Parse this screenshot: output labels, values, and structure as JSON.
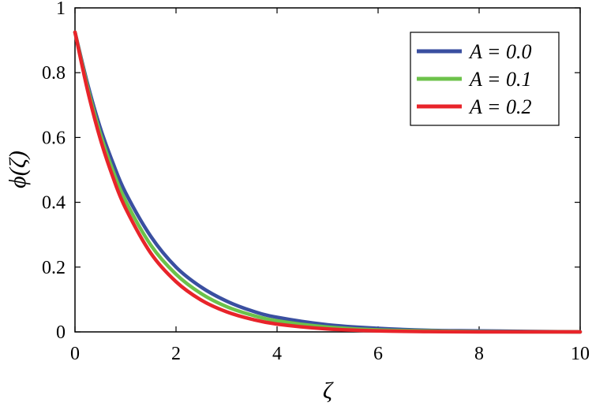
{
  "chart_data": {
    "type": "line",
    "xlabel": "ζ",
    "ylabel": "ϕ(ζ)",
    "xlim": [
      0,
      10
    ],
    "ylim": [
      0,
      1
    ],
    "xticks": [
      "0",
      "2",
      "4",
      "6",
      "8",
      "10"
    ],
    "yticks": [
      "0",
      "0.2",
      "0.4",
      "0.6",
      "0.8",
      "1"
    ],
    "grid": false,
    "legend_position": "top-right",
    "series": [
      {
        "name": "A = 0.0",
        "color": "#3a4fa0",
        "x": [
          0,
          0.25,
          0.5,
          0.75,
          1,
          1.5,
          2,
          2.5,
          3,
          3.5,
          4,
          5,
          6,
          7,
          8,
          10
        ],
        "y": [
          0.925,
          0.765,
          0.63,
          0.522,
          0.43,
          0.295,
          0.2,
          0.138,
          0.095,
          0.065,
          0.045,
          0.022,
          0.011,
          0.005,
          0.003,
          0.0
        ]
      },
      {
        "name": "A = 0.1",
        "color": "#6cc24a",
        "x": [
          0,
          0.25,
          0.5,
          0.75,
          1,
          1.5,
          2,
          2.5,
          3,
          3.5,
          4,
          5,
          6,
          7,
          8,
          10
        ],
        "y": [
          0.925,
          0.755,
          0.612,
          0.498,
          0.405,
          0.268,
          0.178,
          0.118,
          0.078,
          0.052,
          0.034,
          0.015,
          0.006,
          0.003,
          0.001,
          0.0
        ]
      },
      {
        "name": "A = 0.2",
        "color": "#e8242a",
        "x": [
          0,
          0.25,
          0.5,
          0.75,
          1,
          1.5,
          2,
          2.5,
          3,
          3.5,
          4,
          5,
          6,
          7,
          8,
          10
        ],
        "y": [
          0.925,
          0.745,
          0.596,
          0.478,
          0.382,
          0.243,
          0.155,
          0.098,
          0.062,
          0.039,
          0.024,
          0.009,
          0.003,
          0.001,
          0.0,
          0.0
        ]
      }
    ]
  }
}
